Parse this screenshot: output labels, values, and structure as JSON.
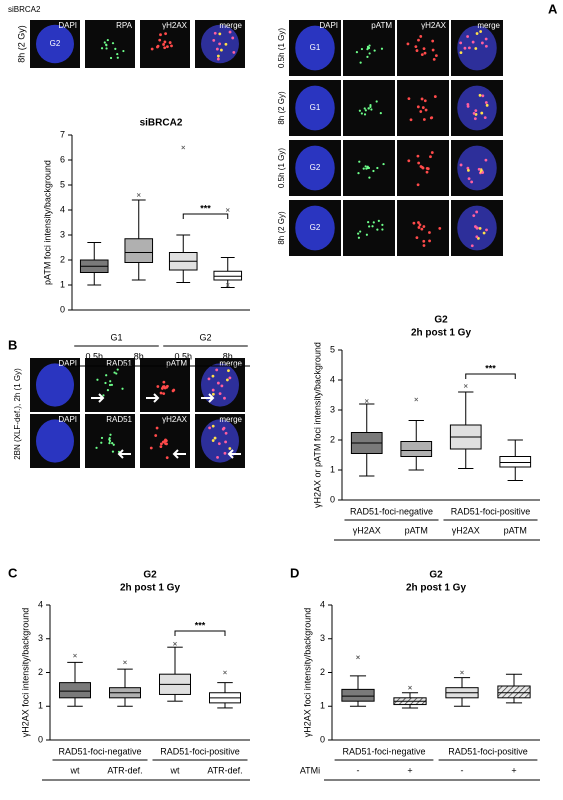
{
  "panel_letters": [
    "A",
    "B",
    "C",
    "D"
  ],
  "panel_a_left": {
    "condition": "siBRCA2",
    "channels": [
      "DAPI",
      "RPA",
      "γH2AX",
      "merge"
    ],
    "rows": [
      {
        "label": "8h (2 Gy)",
        "cell": "G2"
      }
    ]
  },
  "panel_a_right": {
    "channels": [
      "DAPI",
      "pATM",
      "γH2AX",
      "merge"
    ],
    "rows": [
      {
        "label": "0.5h (1 Gy)",
        "cell": "G1"
      },
      {
        "label": "8h (2 Gy)",
        "cell": "G1"
      },
      {
        "label": "0.5h (1 Gy)",
        "cell": "G2"
      },
      {
        "label": "8h (2 Gy)",
        "cell": "G2"
      }
    ]
  },
  "panel_b_images": {
    "side_label": "2BN (XLF-def.), 2h (1 Gy)",
    "rows": [
      {
        "channels": [
          "DAPI",
          "RAD51",
          "pATM",
          "merge"
        ]
      },
      {
        "channels": [
          "DAPI",
          "RAD51",
          "γH2AX",
          "merge"
        ]
      }
    ]
  },
  "chart_data": [
    {
      "type": "box",
      "title": "siBRCA2",
      "ylabel": "pATM foci intensity/background",
      "ylim": [
        0,
        7
      ],
      "yticks": [
        0,
        1,
        2,
        3,
        4,
        5,
        6,
        7
      ],
      "categories": [
        "0.5h",
        "8h",
        "0.5h",
        "8h"
      ],
      "groups": [
        {
          "label": "G1",
          "span": [
            0,
            1
          ]
        },
        {
          "label": "G2",
          "span": [
            2,
            3
          ]
        }
      ],
      "colors": [
        "#7a7a7a",
        "#b0b0b0",
        "#e0e0e0",
        "#ffffff"
      ],
      "boxes": [
        {
          "whisker_low": 1.0,
          "q1": 1.5,
          "median": 1.75,
          "q3": 2.0,
          "whisker_high": 2.7,
          "outliers": []
        },
        {
          "whisker_low": 1.2,
          "q1": 1.9,
          "median": 2.3,
          "q3": 2.85,
          "whisker_high": 4.4,
          "outliers": [
            4.6
          ]
        },
        {
          "whisker_low": 1.1,
          "q1": 1.6,
          "median": 1.95,
          "q3": 2.3,
          "whisker_high": 3.0,
          "outliers": [
            6.5
          ]
        },
        {
          "whisker_low": 0.9,
          "q1": 1.2,
          "median": 1.35,
          "q3": 1.55,
          "whisker_high": 2.1,
          "outliers": [
            4.0,
            1.0
          ]
        }
      ],
      "significance": {
        "label": "***",
        "between": [
          2,
          3
        ]
      }
    },
    {
      "type": "box",
      "title": "G2",
      "subtitle": "2h post 1 Gy",
      "ylabel": "γH2AX or pATM foci intensity/background",
      "ylim": [
        0,
        5
      ],
      "yticks": [
        0,
        1,
        2,
        3,
        4,
        5
      ],
      "categories": [
        "γH2AX",
        "pATM",
        "γH2AX",
        "pATM"
      ],
      "groups": [
        {
          "label": "RAD51-foci-negative",
          "span": [
            0,
            1
          ]
        },
        {
          "label": "RAD51-foci-positive",
          "span": [
            2,
            3
          ]
        }
      ],
      "colors": [
        "#7a7a7a",
        "#b0b0b0",
        "#e0e0e0",
        "#ffffff"
      ],
      "boxes": [
        {
          "whisker_low": 0.8,
          "q1": 1.55,
          "median": 1.9,
          "q3": 2.25,
          "whisker_high": 3.2,
          "outliers": [
            3.3
          ]
        },
        {
          "whisker_low": 1.0,
          "q1": 1.45,
          "median": 1.65,
          "q3": 1.95,
          "whisker_high": 2.65,
          "outliers": [
            3.35
          ]
        },
        {
          "whisker_low": 1.05,
          "q1": 1.7,
          "median": 2.1,
          "q3": 2.5,
          "whisker_high": 3.6,
          "outliers": [
            3.8
          ]
        },
        {
          "whisker_low": 0.65,
          "q1": 1.1,
          "median": 1.25,
          "q3": 1.45,
          "whisker_high": 2.0,
          "outliers": []
        }
      ],
      "significance": {
        "label": "***",
        "between": [
          2,
          3
        ]
      }
    },
    {
      "type": "box",
      "title": "G2",
      "subtitle": "2h post 1 Gy",
      "ylabel": "γH2AX foci intensity/background",
      "ylim": [
        0,
        4
      ],
      "yticks": [
        0,
        1,
        2,
        3,
        4
      ],
      "categories": [
        "wt",
        "ATR-def.",
        "wt",
        "ATR-def."
      ],
      "groups": [
        {
          "label": "RAD51-foci-negative",
          "span": [
            0,
            1
          ]
        },
        {
          "label": "RAD51-foci-positive",
          "span": [
            2,
            3
          ]
        }
      ],
      "colors": [
        "#7a7a7a",
        "#b0b0b0",
        "#e0e0e0",
        "#ffffff"
      ],
      "boxes": [
        {
          "whisker_low": 1.0,
          "q1": 1.25,
          "median": 1.45,
          "q3": 1.7,
          "whisker_high": 2.3,
          "outliers": [
            2.5
          ]
        },
        {
          "whisker_low": 1.0,
          "q1": 1.25,
          "median": 1.4,
          "q3": 1.55,
          "whisker_high": 2.1,
          "outliers": [
            2.3
          ]
        },
        {
          "whisker_low": 1.15,
          "q1": 1.35,
          "median": 1.65,
          "q3": 1.95,
          "whisker_high": 2.75,
          "outliers": [
            2.85
          ]
        },
        {
          "whisker_low": 0.95,
          "q1": 1.1,
          "median": 1.25,
          "q3": 1.4,
          "whisker_high": 1.7,
          "outliers": [
            2.0
          ]
        }
      ],
      "significance": {
        "label": "***",
        "between": [
          2,
          3
        ]
      }
    },
    {
      "type": "box",
      "title": "G2",
      "subtitle": "2h post 1 Gy",
      "ylabel": "γH2AX foci intensity/background",
      "xlabel": "ATMi",
      "ylim": [
        0,
        4
      ],
      "yticks": [
        0,
        1,
        2,
        3,
        4
      ],
      "categories": [
        "-",
        "+",
        "-",
        "+"
      ],
      "groups": [
        {
          "label": "RAD51-foci-negative",
          "span": [
            0,
            1
          ]
        },
        {
          "label": "RAD51-foci-positive",
          "span": [
            2,
            3
          ]
        }
      ],
      "colors": [
        "#7a7a7a",
        "#c8c8c8",
        "#e0e0e0",
        "#e0e0e0"
      ],
      "hatched": [
        false,
        true,
        false,
        true
      ],
      "boxes": [
        {
          "whisker_low": 1.0,
          "q1": 1.15,
          "median": 1.3,
          "q3": 1.5,
          "whisker_high": 1.9,
          "outliers": [
            2.45
          ]
        },
        {
          "whisker_low": 0.95,
          "q1": 1.05,
          "median": 1.15,
          "q3": 1.25,
          "whisker_high": 1.4,
          "outliers": [
            1.55
          ]
        },
        {
          "whisker_low": 1.0,
          "q1": 1.25,
          "median": 1.4,
          "q3": 1.55,
          "whisker_high": 1.85,
          "outliers": [
            2.0
          ]
        },
        {
          "whisker_low": 1.1,
          "q1": 1.25,
          "median": 1.4,
          "q3": 1.6,
          "whisker_high": 1.95,
          "outliers": []
        }
      ]
    }
  ]
}
